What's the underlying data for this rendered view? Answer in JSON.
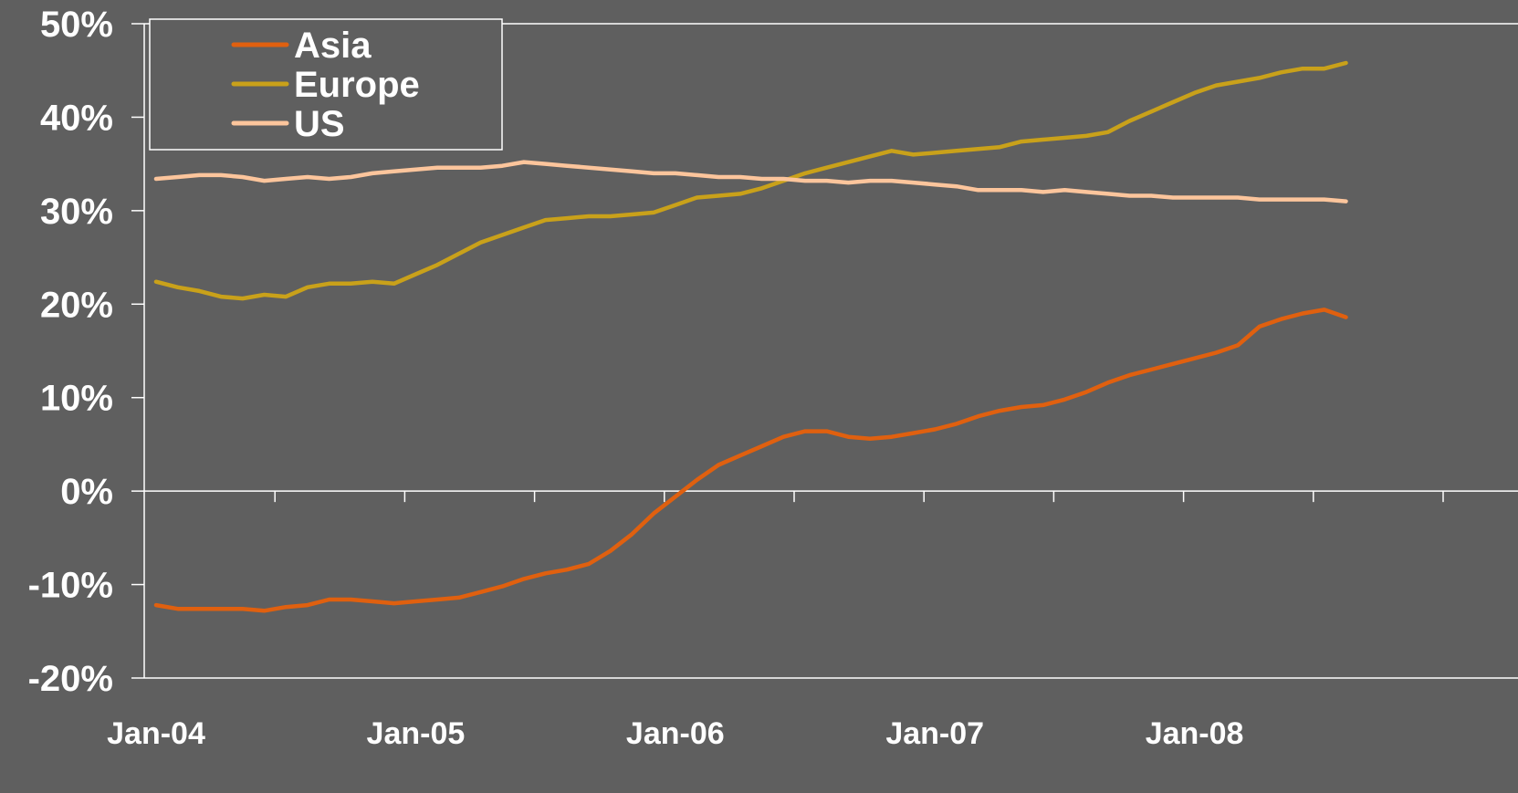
{
  "chart_data": {
    "type": "line",
    "title": "",
    "xlabel": "",
    "ylabel": "",
    "x_range": [
      "Jan-04",
      "Dec-08"
    ],
    "x_tick_labels": [
      "Jan-04",
      "Jan-05",
      "Jan-06",
      "Jan-07",
      "Jan-08"
    ],
    "ylim": [
      -20,
      50
    ],
    "y_ticks": [
      -20,
      -10,
      0,
      10,
      20,
      30,
      40,
      50
    ],
    "y_tick_labels": [
      "-20%",
      "-10%",
      "0%",
      "10%",
      "20%",
      "30%",
      "40%",
      "50%"
    ],
    "grid": false,
    "legend_position": "top-left",
    "colors": {
      "background": "#5f5f5f",
      "axis": "#ffffff",
      "text": "#ffffff"
    },
    "series": [
      {
        "name": "Asia",
        "color": "#e0600f",
        "points": [
          [
            "2004-01",
            -12.2
          ],
          [
            "2004-02",
            -12.6
          ],
          [
            "2004-03",
            -12.6
          ],
          [
            "2004-04",
            -12.6
          ],
          [
            "2004-05",
            -12.6
          ],
          [
            "2004-06",
            -12.8
          ],
          [
            "2004-07",
            -12.4
          ],
          [
            "2004-08",
            -12.2
          ],
          [
            "2004-09",
            -11.6
          ],
          [
            "2004-10",
            -11.6
          ],
          [
            "2004-11",
            -11.8
          ],
          [
            "2004-12",
            -12.0
          ],
          [
            "2005-01",
            -11.8
          ],
          [
            "2005-02",
            -11.6
          ],
          [
            "2005-03",
            -11.4
          ],
          [
            "2005-04",
            -10.8
          ],
          [
            "2005-05",
            -10.2
          ],
          [
            "2005-06",
            -9.4
          ],
          [
            "2005-07",
            -8.8
          ],
          [
            "2005-08",
            -8.4
          ],
          [
            "2005-09",
            -7.8
          ],
          [
            "2005-10",
            -6.4
          ],
          [
            "2005-11",
            -4.6
          ],
          [
            "2005-12",
            -2.4
          ],
          [
            "2006-01",
            -0.6
          ],
          [
            "2006-02",
            1.2
          ],
          [
            "2006-03",
            2.8
          ],
          [
            "2006-04",
            3.8
          ],
          [
            "2006-05",
            4.8
          ],
          [
            "2006-06",
            5.8
          ],
          [
            "2006-07",
            6.4
          ],
          [
            "2006-08",
            6.4
          ],
          [
            "2006-09",
            5.8
          ],
          [
            "2006-10",
            5.6
          ],
          [
            "2006-11",
            5.8
          ],
          [
            "2006-12",
            6.2
          ],
          [
            "2007-01",
            6.6
          ],
          [
            "2007-02",
            7.2
          ],
          [
            "2007-03",
            8.0
          ],
          [
            "2007-04",
            8.6
          ],
          [
            "2007-05",
            9.0
          ],
          [
            "2007-06",
            9.2
          ],
          [
            "2007-07",
            9.8
          ],
          [
            "2007-08",
            10.6
          ],
          [
            "2007-09",
            11.6
          ],
          [
            "2007-10",
            12.4
          ],
          [
            "2007-11",
            13.0
          ],
          [
            "2007-12",
            13.6
          ],
          [
            "2008-01",
            14.2
          ],
          [
            "2008-02",
            14.8
          ],
          [
            "2008-03",
            15.6
          ],
          [
            "2008-04",
            17.6
          ],
          [
            "2008-05",
            18.4
          ],
          [
            "2008-06",
            19.0
          ],
          [
            "2008-07",
            19.4
          ],
          [
            "2008-08",
            18.6
          ]
        ]
      },
      {
        "name": "Europe",
        "color": "#c9a11a",
        "points": [
          [
            "2004-01",
            22.4
          ],
          [
            "2004-02",
            21.8
          ],
          [
            "2004-03",
            21.4
          ],
          [
            "2004-04",
            20.8
          ],
          [
            "2004-05",
            20.6
          ],
          [
            "2004-06",
            21.0
          ],
          [
            "2004-07",
            20.8
          ],
          [
            "2004-08",
            21.8
          ],
          [
            "2004-09",
            22.2
          ],
          [
            "2004-10",
            22.2
          ],
          [
            "2004-11",
            22.4
          ],
          [
            "2004-12",
            22.2
          ],
          [
            "2005-01",
            23.2
          ],
          [
            "2005-02",
            24.2
          ],
          [
            "2005-03",
            25.4
          ],
          [
            "2005-04",
            26.6
          ],
          [
            "2005-05",
            27.4
          ],
          [
            "2005-06",
            28.2
          ],
          [
            "2005-07",
            29.0
          ],
          [
            "2005-08",
            29.2
          ],
          [
            "2005-09",
            29.4
          ],
          [
            "2005-10",
            29.4
          ],
          [
            "2005-11",
            29.6
          ],
          [
            "2005-12",
            29.8
          ],
          [
            "2006-01",
            30.6
          ],
          [
            "2006-02",
            31.4
          ],
          [
            "2006-03",
            31.6
          ],
          [
            "2006-04",
            31.8
          ],
          [
            "2006-05",
            32.4
          ],
          [
            "2006-06",
            33.2
          ],
          [
            "2006-07",
            34.0
          ],
          [
            "2006-08",
            34.6
          ],
          [
            "2006-09",
            35.2
          ],
          [
            "2006-10",
            35.8
          ],
          [
            "2006-11",
            36.4
          ],
          [
            "2006-12",
            36.0
          ],
          [
            "2007-01",
            36.2
          ],
          [
            "2007-02",
            36.4
          ],
          [
            "2007-03",
            36.6
          ],
          [
            "2007-04",
            36.8
          ],
          [
            "2007-05",
            37.4
          ],
          [
            "2007-06",
            37.6
          ],
          [
            "2007-07",
            37.8
          ],
          [
            "2007-08",
            38.0
          ],
          [
            "2007-09",
            38.4
          ],
          [
            "2007-10",
            39.6
          ],
          [
            "2007-11",
            40.6
          ],
          [
            "2007-12",
            41.6
          ],
          [
            "2008-01",
            42.6
          ],
          [
            "2008-02",
            43.4
          ],
          [
            "2008-03",
            43.8
          ],
          [
            "2008-04",
            44.2
          ],
          [
            "2008-05",
            44.8
          ],
          [
            "2008-06",
            45.2
          ],
          [
            "2008-07",
            45.2
          ],
          [
            "2008-08",
            45.8
          ]
        ]
      },
      {
        "name": "US",
        "color": "#fcc59c",
        "points": [
          [
            "2004-01",
            33.4
          ],
          [
            "2004-02",
            33.6
          ],
          [
            "2004-03",
            33.8
          ],
          [
            "2004-04",
            33.8
          ],
          [
            "2004-05",
            33.6
          ],
          [
            "2004-06",
            33.2
          ],
          [
            "2004-07",
            33.4
          ],
          [
            "2004-08",
            33.6
          ],
          [
            "2004-09",
            33.4
          ],
          [
            "2004-10",
            33.6
          ],
          [
            "2004-11",
            34.0
          ],
          [
            "2004-12",
            34.2
          ],
          [
            "2005-01",
            34.4
          ],
          [
            "2005-02",
            34.6
          ],
          [
            "2005-03",
            34.6
          ],
          [
            "2005-04",
            34.6
          ],
          [
            "2005-05",
            34.8
          ],
          [
            "2005-06",
            35.2
          ],
          [
            "2005-07",
            35.0
          ],
          [
            "2005-08",
            34.8
          ],
          [
            "2005-09",
            34.6
          ],
          [
            "2005-10",
            34.4
          ],
          [
            "2005-11",
            34.2
          ],
          [
            "2005-12",
            34.0
          ],
          [
            "2006-01",
            34.0
          ],
          [
            "2006-02",
            33.8
          ],
          [
            "2006-03",
            33.6
          ],
          [
            "2006-04",
            33.6
          ],
          [
            "2006-05",
            33.4
          ],
          [
            "2006-06",
            33.4
          ],
          [
            "2006-07",
            33.2
          ],
          [
            "2006-08",
            33.2
          ],
          [
            "2006-09",
            33.0
          ],
          [
            "2006-10",
            33.2
          ],
          [
            "2006-11",
            33.2
          ],
          [
            "2006-12",
            33.0
          ],
          [
            "2007-01",
            32.8
          ],
          [
            "2007-02",
            32.6
          ],
          [
            "2007-03",
            32.2
          ],
          [
            "2007-04",
            32.2
          ],
          [
            "2007-05",
            32.2
          ],
          [
            "2007-06",
            32.0
          ],
          [
            "2007-07",
            32.2
          ],
          [
            "2007-08",
            32.0
          ],
          [
            "2007-09",
            31.8
          ],
          [
            "2007-10",
            31.6
          ],
          [
            "2007-11",
            31.6
          ],
          [
            "2007-12",
            31.4
          ],
          [
            "2008-01",
            31.4
          ],
          [
            "2008-02",
            31.4
          ],
          [
            "2008-03",
            31.4
          ],
          [
            "2008-04",
            31.2
          ],
          [
            "2008-05",
            31.2
          ],
          [
            "2008-06",
            31.2
          ],
          [
            "2008-07",
            31.2
          ],
          [
            "2008-08",
            31.0
          ]
        ]
      }
    ]
  }
}
